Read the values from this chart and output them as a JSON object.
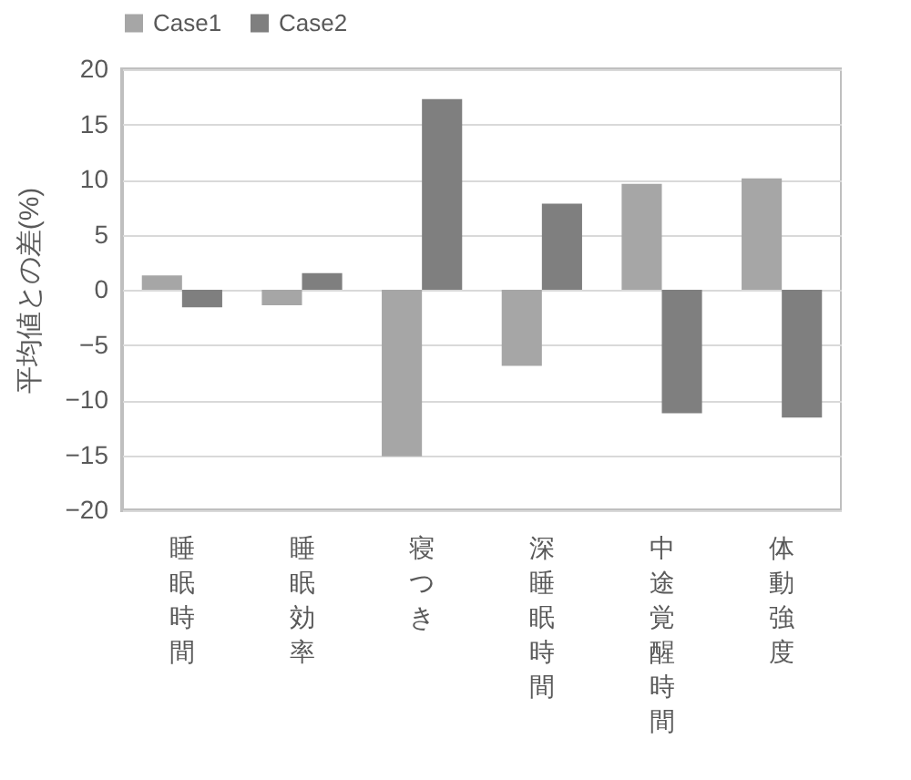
{
  "chart_data": {
    "type": "bar",
    "ylabel": "平均値との差(%)",
    "categories": [
      "睡眠時間",
      "睡眠効率",
      "寝つき",
      "深睡眠時間",
      "中途覚醒時間",
      "体動強度"
    ],
    "series": [
      {
        "name": "Case1",
        "color": "#a6a6a6",
        "values": [
          1.3,
          -1.4,
          -15.1,
          -6.9,
          9.6,
          10.1
        ]
      },
      {
        "name": "Case2",
        "color": "#7f7f7f",
        "values": [
          -1.6,
          1.5,
          17.3,
          7.8,
          -11.2,
          -11.6
        ]
      }
    ],
    "ylim": [
      -20,
      20
    ],
    "yticks": [
      -20,
      -15,
      -10,
      -5,
      0,
      5,
      10,
      15,
      20
    ],
    "grid": "y",
    "legend": "top"
  }
}
